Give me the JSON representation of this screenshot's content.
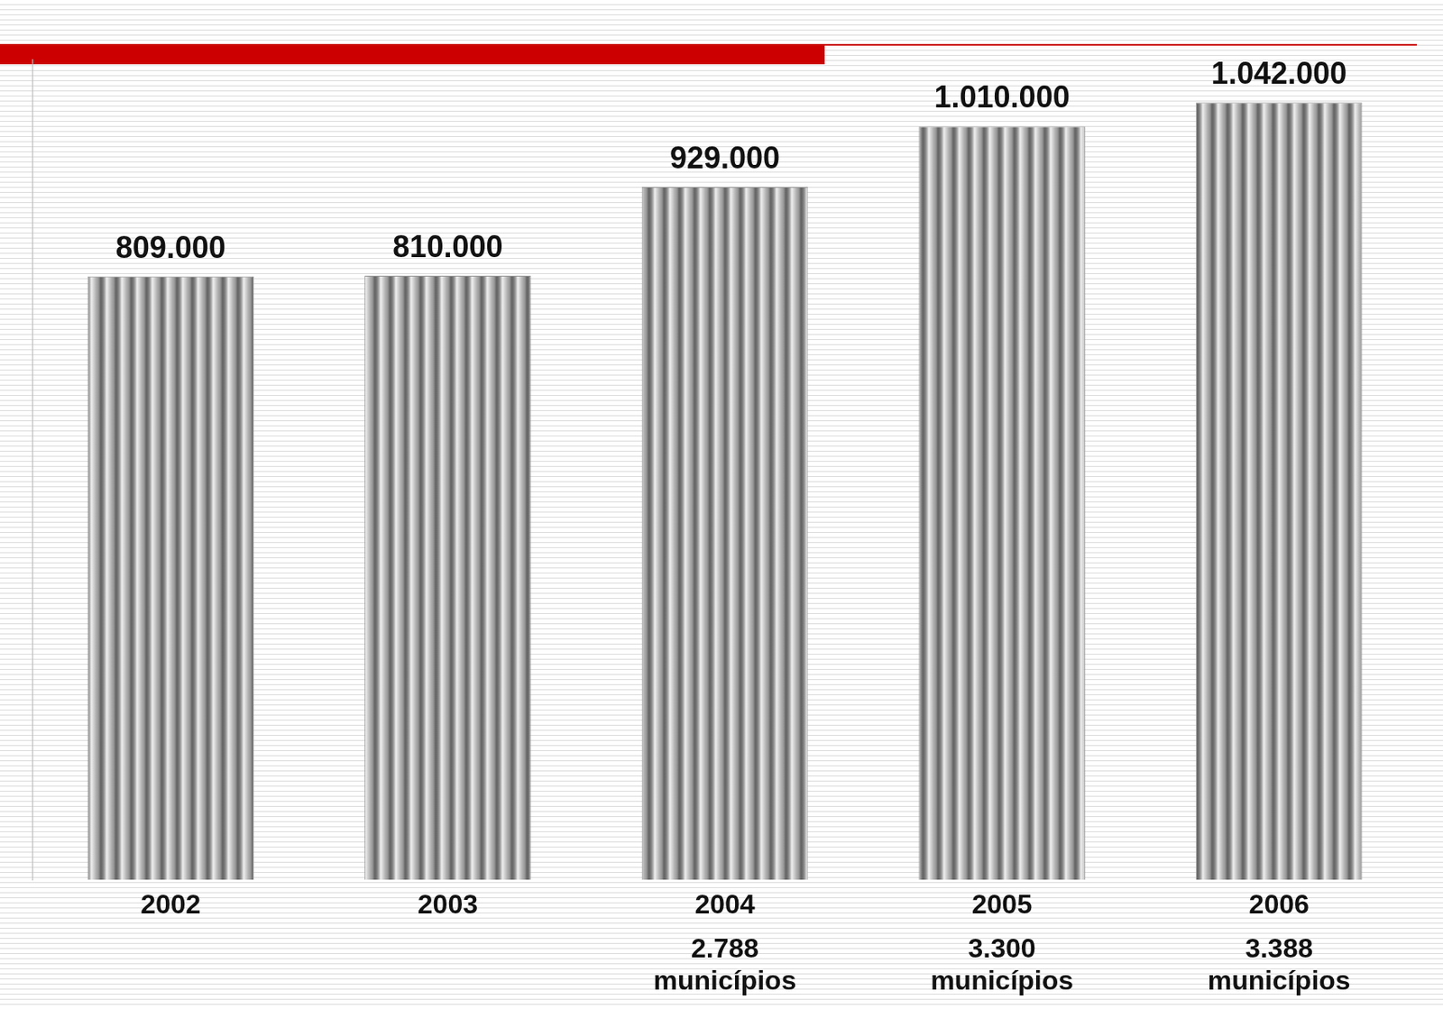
{
  "chart_data": {
    "type": "bar",
    "categories": [
      "2002",
      "2003",
      "2004",
      "2005",
      "2006"
    ],
    "values": [
      809000,
      810000,
      929000,
      1010000,
      1042000
    ],
    "value_labels": [
      "809.000",
      "810.000",
      "929.000",
      "1.010.000",
      "1.042.000"
    ],
    "data_labels": true,
    "color": "#9a9a9a",
    "ylim": [
      0,
      1100000
    ],
    "tick_labels": "x",
    "grid": false,
    "annotations": [
      {
        "category": "2004",
        "text": "2.788 municípios"
      },
      {
        "category": "2005",
        "text": "3.300 municípios"
      },
      {
        "category": "2006",
        "text": "3.388 municípios"
      }
    ]
  }
}
